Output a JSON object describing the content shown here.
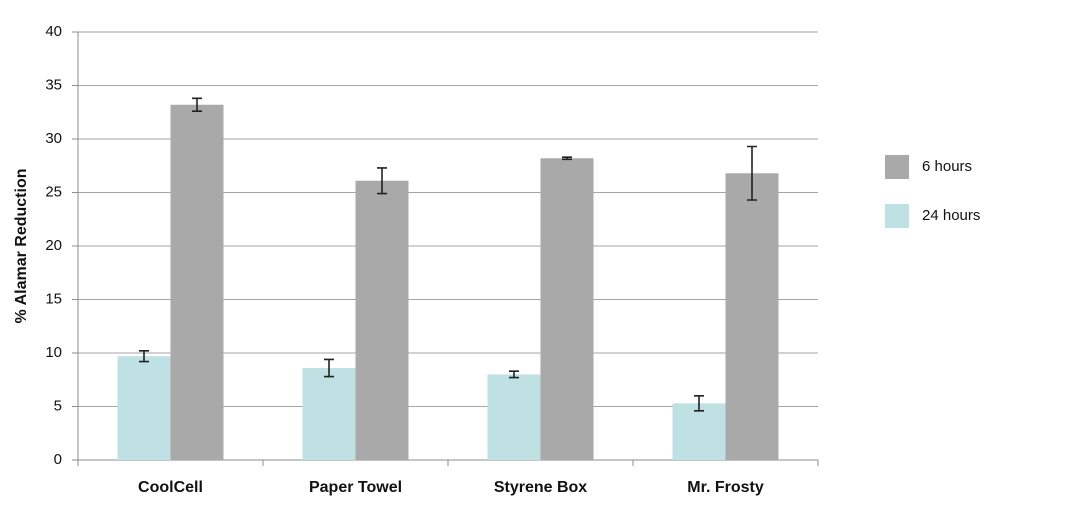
{
  "chart_data": {
    "type": "bar",
    "y_label": "% Alamar  Reduction",
    "categories": [
      "CoolCell",
      "Paper Towel",
      "Styrene Box",
      "Mr. Frosty"
    ],
    "series": [
      {
        "name": "24 hours",
        "color": "#bfe1e4",
        "values": [
          9.7,
          8.6,
          8.0,
          5.3
        ],
        "errors": [
          0.5,
          0.8,
          0.3,
          0.7
        ]
      },
      {
        "name": "6 hours",
        "color": "#a9a9a9",
        "values": [
          33.2,
          26.1,
          28.2,
          26.8
        ],
        "errors": [
          0.6,
          1.2,
          0.1,
          2.5
        ]
      }
    ],
    "ylim": [
      0,
      40
    ],
    "yticks": [
      0,
      5,
      10,
      15,
      20,
      25,
      30,
      35,
      40
    ],
    "grid": true
  }
}
